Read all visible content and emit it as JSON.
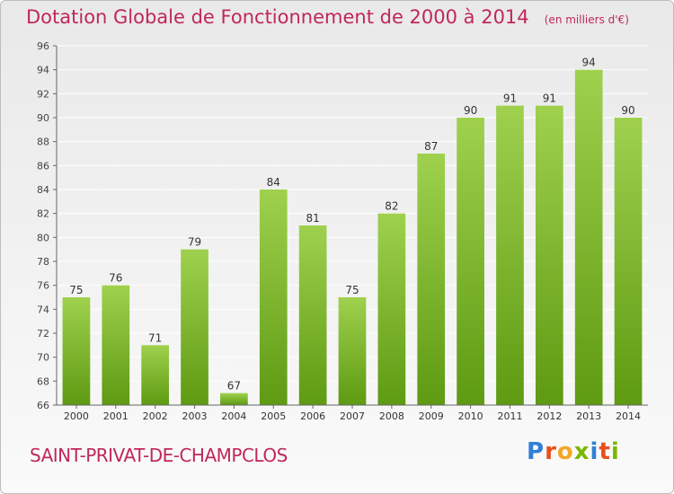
{
  "header": {
    "title": "Dotation Globale de Fonctionnement de 2000 à 2014",
    "subtitle": "(en milliers d'€)"
  },
  "footer": {
    "place_name": "SAINT-PRIVAT-DE-CHAMPCLOS",
    "logo_text": "Proxiti"
  },
  "colors": {
    "title": "#c0275a",
    "bar_top": "#9fd14e",
    "bar_bottom": "#5e9a12",
    "grid": "#ffffff"
  },
  "chart_data": {
    "type": "bar",
    "title": "Dotation Globale de Fonctionnement de 2000 à 2014",
    "subtitle": "(en milliers d'€)",
    "xlabel": "",
    "ylabel": "",
    "categories": [
      "2000",
      "2001",
      "2002",
      "2003",
      "2004",
      "2005",
      "2006",
      "2007",
      "2008",
      "2009",
      "2010",
      "2011",
      "2012",
      "2013",
      "2014"
    ],
    "values": [
      75,
      76,
      71,
      79,
      67,
      84,
      81,
      75,
      82,
      87,
      90,
      91,
      91,
      94,
      90
    ],
    "ylim": [
      66,
      96
    ],
    "yticks": [
      66,
      68,
      70,
      72,
      74,
      76,
      78,
      80,
      82,
      84,
      86,
      88,
      90,
      92,
      94,
      96
    ],
    "grid": true,
    "legend": "none"
  }
}
